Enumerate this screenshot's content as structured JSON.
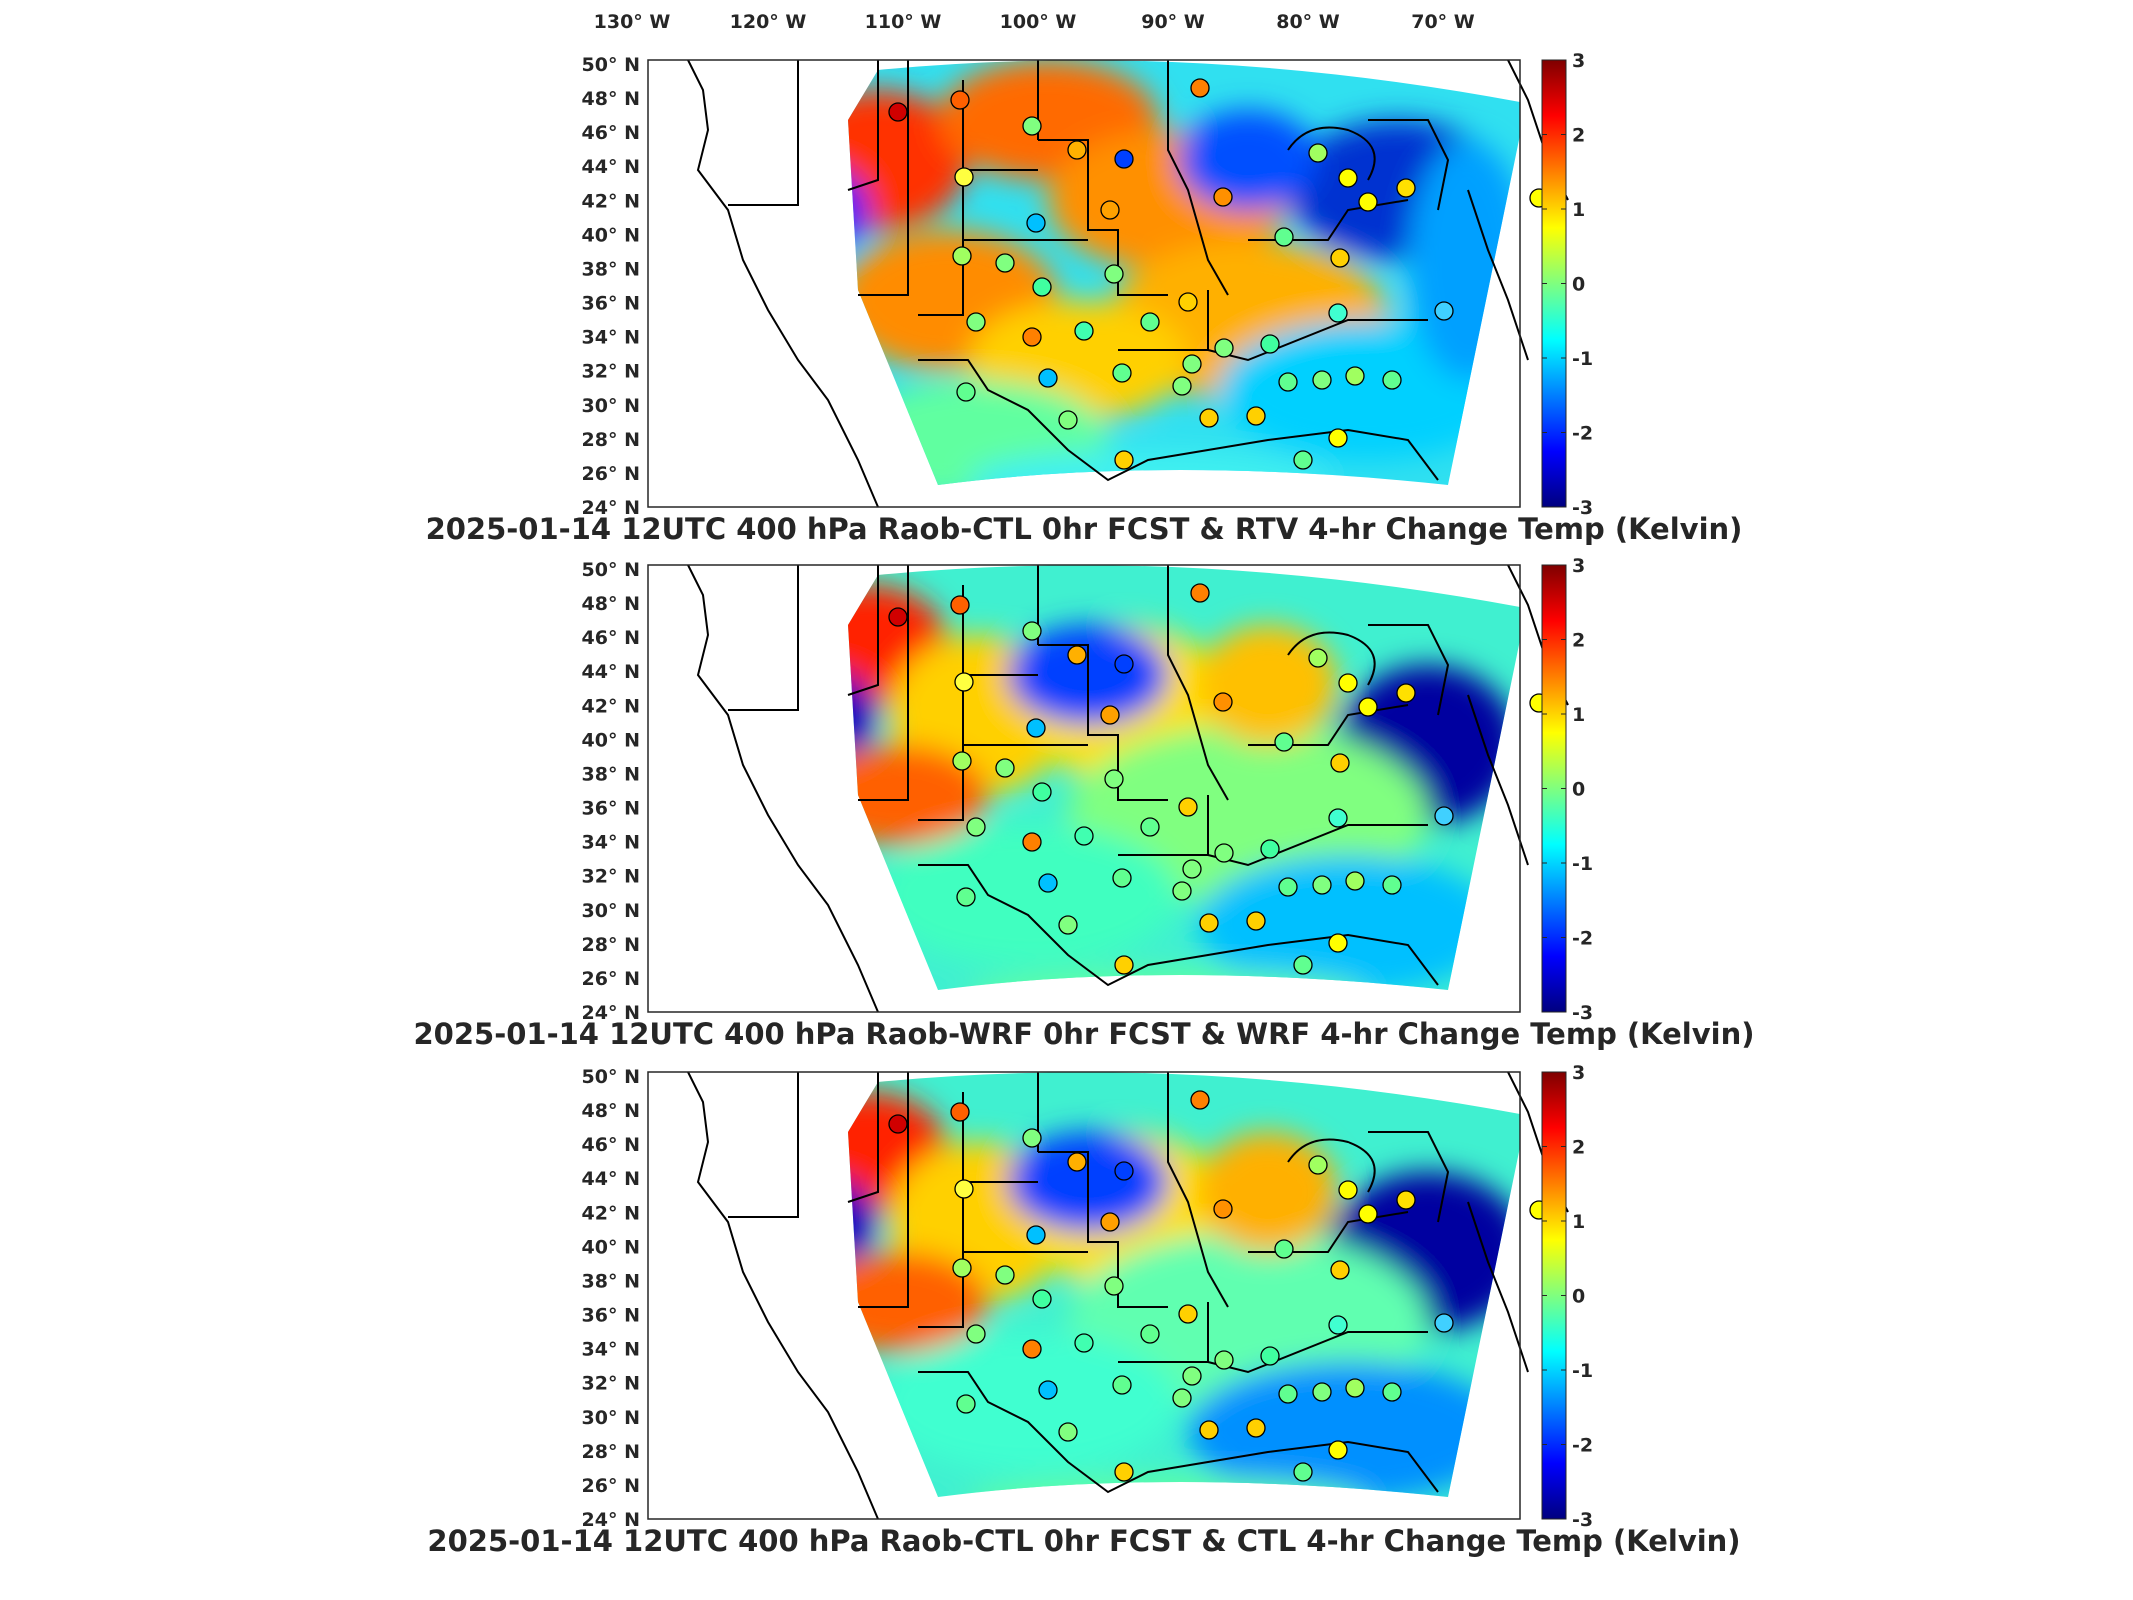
{
  "figure": {
    "lon_labels": [
      "130° W",
      "120° W",
      "110° W",
      "100° W",
      "90° W",
      "80° W",
      "70° W"
    ],
    "lat_labels": [
      "50° N",
      "48° N",
      "46° N",
      "44° N",
      "42° N",
      "40° N",
      "38° N",
      "36° N",
      "34° N",
      "32° N",
      "30° N",
      "28° N",
      "26° N",
      "24° N"
    ],
    "colorbar": {
      "ticks": [
        "3",
        "2",
        "1",
        "0",
        "-1",
        "-2",
        "-3"
      ],
      "min": -3,
      "max": 3,
      "colormap": "jet",
      "colors": [
        "#00007f",
        "#0000ff",
        "#007fff",
        "#00ffff",
        "#7fff7f",
        "#ffff00",
        "#ff7f00",
        "#ff0000",
        "#7f0000"
      ]
    },
    "panels": [
      {
        "title": "2025-01-14 12UTC 400 hPa Raob-CTL 0hr FCST & RTV 4-hr Change Temp (Kelvin)"
      },
      {
        "title": "2025-01-14 12UTC 400 hPa Raob-WRF 0hr FCST & WRF 4-hr Change Temp (Kelvin)"
      },
      {
        "title": "2025-01-14 12UTC 400 hPa Raob-CTL 0hr FCST & CTL 4-hr Change Temp (Kelvin)"
      }
    ]
  }
}
